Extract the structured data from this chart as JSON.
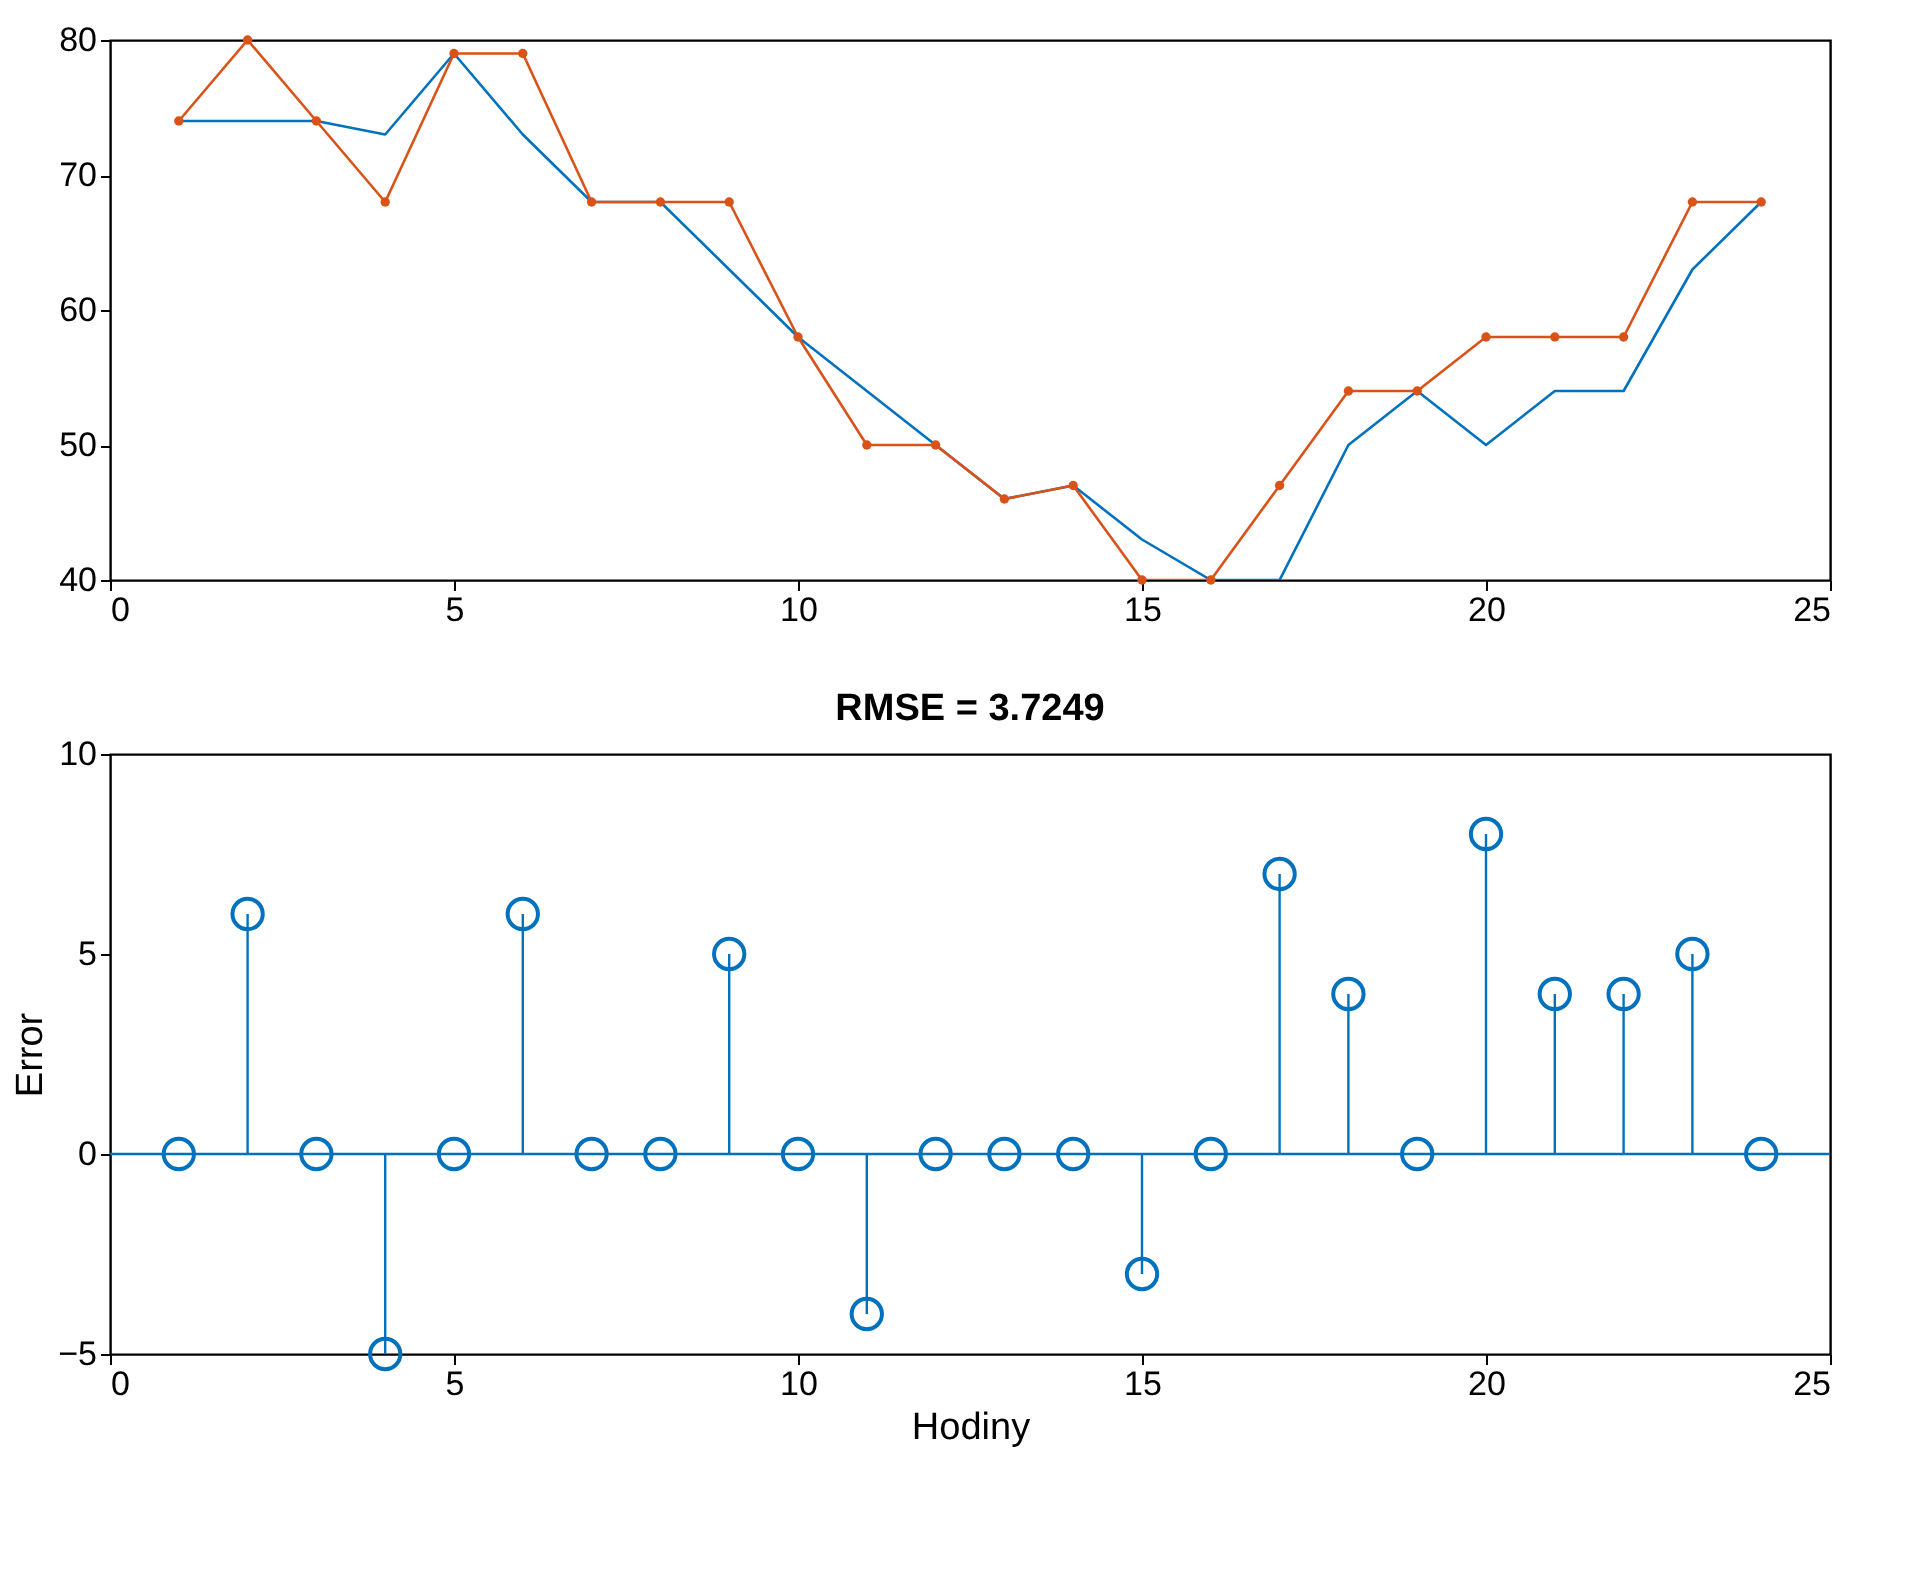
{
  "chart_data": [
    {
      "type": "line",
      "x": [
        1,
        2,
        3,
        4,
        5,
        6,
        7,
        8,
        9,
        10,
        11,
        12,
        13,
        14,
        15,
        16,
        17,
        18,
        19,
        20,
        21,
        22,
        23,
        24
      ],
      "series": [
        {
          "color": "#0072bd",
          "marker": "none",
          "values": [
            74,
            74,
            74,
            73,
            79,
            73,
            68,
            68,
            63,
            58,
            54,
            50,
            46,
            47,
            43,
            40,
            40,
            50,
            54,
            50,
            54,
            54,
            63,
            68
          ]
        },
        {
          "color": "#d95319",
          "marker": "circle",
          "values": [
            74,
            80,
            74,
            68,
            79,
            79,
            68,
            68,
            68,
            58,
            50,
            50,
            46,
            47,
            40,
            40,
            47,
            54,
            54,
            58,
            58,
            58,
            68,
            68
          ]
        }
      ],
      "xlim": [
        0,
        25
      ],
      "xticks": [
        0,
        5,
        10,
        15,
        20,
        25
      ],
      "ylim": [
        40,
        80
      ],
      "yticks": [
        40,
        50,
        60,
        70,
        80
      ],
      "grid": false
    },
    {
      "type": "lollipop",
      "title": "RMSE = 3.7249",
      "xlabel": "Hodiny",
      "ylabel": "Error",
      "x": [
        1,
        2,
        3,
        4,
        5,
        6,
        7,
        8,
        9,
        10,
        11,
        12,
        13,
        14,
        15,
        16,
        17,
        18,
        19,
        20,
        21,
        22,
        23,
        24
      ],
      "series": [
        {
          "color": "#0072bd",
          "values": [
            0,
            6,
            0,
            -5,
            0,
            6,
            0,
            0,
            5,
            0,
            -4,
            0,
            0,
            0,
            -3,
            0,
            7,
            4,
            0,
            8,
            4,
            4,
            5,
            0
          ]
        }
      ],
      "xlim": [
        0,
        25
      ],
      "xticks": [
        0,
        5,
        10,
        15,
        20,
        25
      ],
      "ylim": [
        -5,
        10
      ],
      "yticks": [
        -5,
        0,
        5,
        10
      ],
      "grid": false,
      "marker": "circle",
      "ref_lines": [
        {
          "axis": "y",
          "value": 0,
          "color": "#0072bd"
        }
      ]
    }
  ]
}
